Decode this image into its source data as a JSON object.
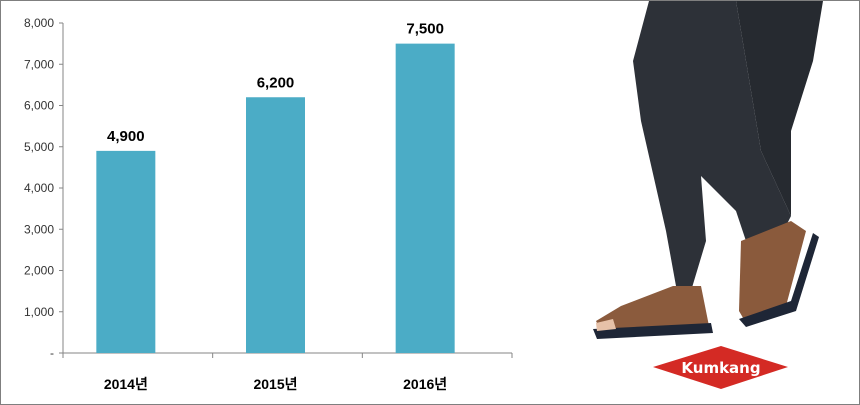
{
  "chart_data": {
    "type": "bar",
    "categories": [
      "2014년",
      "2015년",
      "2016년"
    ],
    "values": [
      4900,
      6200,
      7500
    ],
    "data_labels": [
      "4,900",
      "6,200",
      "7,500"
    ],
    "yticks": [
      "-",
      "1,000",
      "2,000",
      "3,000",
      "4,000",
      "5,000",
      "6,000",
      "7,000",
      "8,000"
    ],
    "ylim": [
      0,
      8000
    ],
    "grid": false,
    "bar_color": "#4bacc6"
  },
  "logo": {
    "text": "Kumkang",
    "color": "#d42a24"
  }
}
